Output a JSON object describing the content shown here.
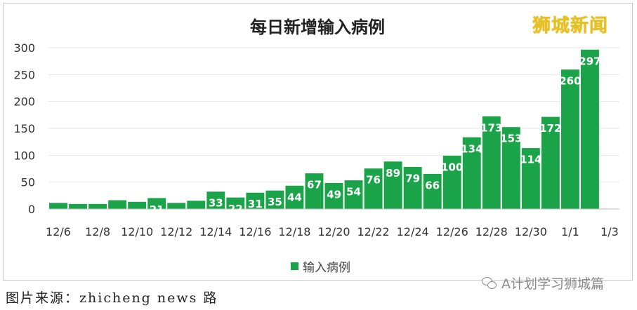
{
  "chart_data": {
    "type": "bar",
    "title": "每日新增输入病例",
    "categories": [
      "12/6",
      "12/7",
      "12/8",
      "12/9",
      "12/10",
      "12/11",
      "12/12",
      "12/13",
      "12/14",
      "12/15",
      "12/16",
      "12/17",
      "12/18",
      "12/19",
      "12/20",
      "12/21",
      "12/22",
      "12/23",
      "12/24",
      "12/25",
      "12/26",
      "12/27",
      "12/28",
      "12/29",
      "12/30",
      "12/31",
      "1/1",
      "1/2"
    ],
    "x_tick_labels": [
      "12/6",
      "12/8",
      "12/10",
      "12/12",
      "12/14",
      "12/16",
      "12/18",
      "12/20",
      "12/22",
      "12/24",
      "12/26",
      "12/28",
      "12/30",
      "1/1",
      "1/3"
    ],
    "series": [
      {
        "name": "输入病例",
        "color": "#1aa348",
        "values": [
          12,
          10,
          10,
          17,
          14,
          21,
          12,
          16,
          33,
          22,
          31,
          35,
          44,
          67,
          49,
          54,
          76,
          89,
          79,
          66,
          100,
          134,
          173,
          153,
          114,
          172,
          260,
          297
        ],
        "labels": [
          "",
          "",
          "",
          "",
          "",
          "21",
          "",
          "",
          "33",
          "22",
          "31",
          "35",
          "44",
          "67",
          "49",
          "54",
          "76",
          "89",
          "79",
          "66",
          "100",
          "134",
          "173",
          "153",
          "114",
          "172",
          "260",
          "297"
        ]
      }
    ],
    "ylim": [
      0,
      300
    ],
    "yticks": [
      0,
      50,
      100,
      150,
      200,
      250,
      300
    ],
    "grid": true,
    "legend": "bottom"
  },
  "brand": "狮城新闻",
  "footer_left": "图片来源：zhicheng news 路",
  "footer_right": "A计划学习狮城篇",
  "wechat_icon": "wechat-icon"
}
